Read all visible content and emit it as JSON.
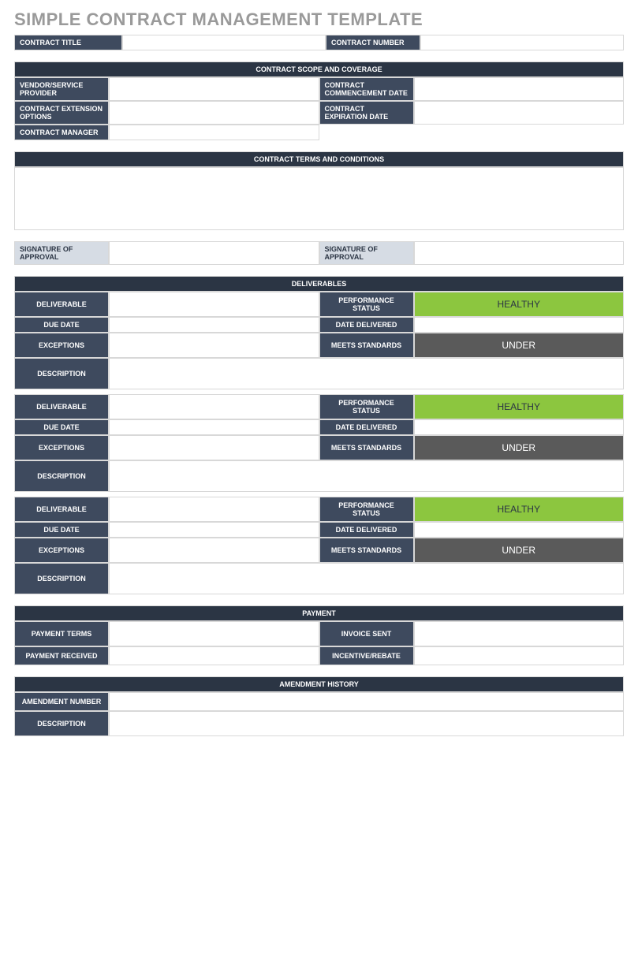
{
  "title": "SIMPLE CONTRACT MANAGEMENT TEMPLATE",
  "colors": {
    "header_dark": "#2b3544",
    "label_dark": "#3e4a5e",
    "label_light": "#d6dce4",
    "healthy": "#8cc63f",
    "under": "#5a5a5a",
    "border": "#d8d8d8",
    "title_gray": "#9a9a9a"
  },
  "top": {
    "contract_title_label": "CONTRACT TITLE",
    "contract_title_value": "",
    "contract_number_label": "CONTRACT NUMBER",
    "contract_number_value": ""
  },
  "scope": {
    "header": "CONTRACT SCOPE AND COVERAGE",
    "vendor_label": "VENDOR/SERVICE PROVIDER",
    "vendor_value": "",
    "commencement_label": "CONTRACT COMMENCEMENT DATE",
    "commencement_value": "",
    "extension_label": "CONTRACT EXTENSION OPTIONS",
    "extension_value": "",
    "expiration_label": "CONTRACT EXPIRATION DATE",
    "expiration_value": "",
    "manager_label": "CONTRACT MANAGER",
    "manager_value": ""
  },
  "terms": {
    "header": "CONTRACT TERMS AND CONDITIONS"
  },
  "signature": {
    "label1": "SIGNATURE OF APPROVAL",
    "value1": "",
    "label2": "SIGNATURE OF APPROVAL",
    "value2": ""
  },
  "deliverables_header": "DELIVERABLES",
  "deliverable_labels": {
    "deliverable": "DELIVERABLE",
    "performance_status": "PERFORMANCE STATUS",
    "due_date": "DUE DATE",
    "date_delivered": "DATE DELIVERED",
    "exceptions": "EXCEPTIONS",
    "meets_standards": "MEETS STANDARDS",
    "description": "DESCRIPTION"
  },
  "deliverables": [
    {
      "deliverable": "",
      "performance_status": "HEALTHY",
      "performance_style": "green",
      "due_date": "",
      "date_delivered": "",
      "exceptions": "",
      "meets_standards": "UNDER",
      "meets_style": "gray",
      "description": ""
    },
    {
      "deliverable": "",
      "performance_status": "HEALTHY",
      "performance_style": "green",
      "due_date": "",
      "date_delivered": "",
      "exceptions": "",
      "meets_standards": "UNDER",
      "meets_style": "gray",
      "description": ""
    },
    {
      "deliverable": "",
      "performance_status": "HEALTHY",
      "performance_style": "green",
      "due_date": "",
      "date_delivered": "",
      "exceptions": "",
      "meets_standards": "UNDER",
      "meets_style": "gray",
      "description": ""
    }
  ],
  "payment": {
    "header": "PAYMENT",
    "terms_label": "PAYMENT TERMS",
    "terms_value": "",
    "invoice_label": "INVOICE SENT",
    "invoice_value": "",
    "received_label": "PAYMENT RECEIVED",
    "received_value": "",
    "incentive_label": "INCENTIVE/REBATE",
    "incentive_value": ""
  },
  "amendment": {
    "header": "AMENDMENT HISTORY",
    "number_label": "AMENDMENT NUMBER",
    "number_value": "",
    "description_label": "DESCRIPTION",
    "description_value": ""
  }
}
